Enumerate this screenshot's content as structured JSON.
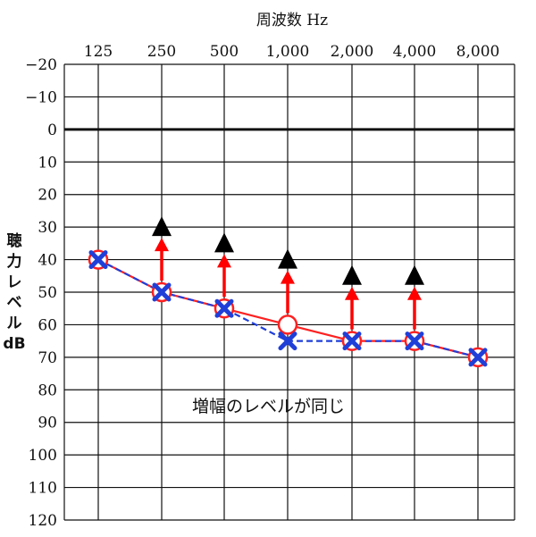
{
  "chart_data": {
    "type": "line",
    "title": "周波数 Hz",
    "ylabel_lines": [
      "聴",
      "力",
      "レ",
      "ベ",
      "ル",
      "dB"
    ],
    "categories": [
      "125",
      "250",
      "500",
      "1,000",
      "2,000",
      "4,000",
      "8,000"
    ],
    "y_ticks": [
      "−20",
      "−10",
      "0",
      "10",
      "20",
      "30",
      "40",
      "50",
      "60",
      "70",
      "80",
      "90",
      "100",
      "110",
      "120"
    ],
    "ylim": [
      -20,
      120
    ],
    "y_inverted": true,
    "grid": true,
    "annotation": "増幅のレベルが同じ",
    "colors": {
      "unaided": "#ff2020",
      "compare": "#1f3fd8",
      "aided": "#000000",
      "arrow": "#ff0000"
    },
    "series": [
      {
        "values": [
          40,
          50,
          55,
          60,
          65,
          65,
          70
        ],
        "marker": "circle",
        "line": "solid"
      },
      {
        "values": [
          40,
          50,
          55,
          65,
          65,
          65,
          70
        ],
        "marker": "x",
        "line": "dashed"
      },
      {
        "values": [
          null,
          30,
          35,
          40,
          45,
          45,
          null
        ],
        "marker": "triangle",
        "line": "none"
      }
    ]
  }
}
